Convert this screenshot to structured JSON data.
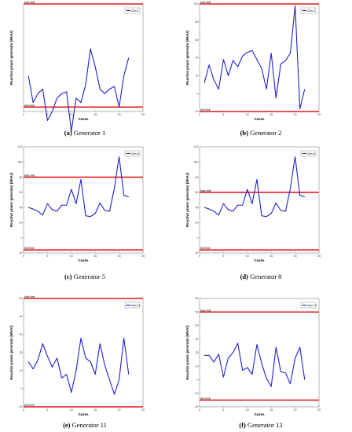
{
  "chart_data": [
    {
      "type": "line",
      "caption_letter": "(a)",
      "caption_text": "Generator 1",
      "xlabel": "Cases",
      "ylabel": "Reactive power generator [MVAr]",
      "xlim": [
        0,
        25
      ],
      "ylim": [
        -20,
        100
      ],
      "xticks": [
        0,
        5,
        10,
        15,
        20,
        25
      ],
      "yticks": [],
      "max_limit": {
        "label": "Max limit",
        "value": 100
      },
      "min_limit": {
        "label": "Min limit",
        "value": -15
      },
      "legend": {
        "placement": "top-right"
      },
      "limit_color": "#e41a1c",
      "series": [
        {
          "name": "Gen 1",
          "color": "#1f1fd6",
          "x": [
            1,
            2,
            3,
            4,
            5,
            6,
            7,
            8,
            9,
            10,
            11,
            12,
            13,
            14,
            15,
            16,
            17,
            18,
            19,
            20,
            21,
            22
          ],
          "values": [
            20,
            -10,
            0,
            5,
            -30,
            -20,
            -5,
            0,
            2,
            -42,
            -5,
            -10,
            10,
            50,
            30,
            5,
            0,
            5,
            8,
            -15,
            20,
            40
          ]
        }
      ]
    },
    {
      "type": "line",
      "caption_letter": "(b)",
      "caption_text": "Generator 2",
      "xlabel": "Cases",
      "ylabel": "Reactive power generator [MVAr]",
      "xlim": [
        0,
        25
      ],
      "ylim": [
        -20,
        100
      ],
      "xticks": [
        0,
        5,
        10,
        15,
        20,
        25
      ],
      "yticks": [
        -20,
        0,
        20,
        40,
        60,
        80,
        100
      ],
      "max_limit": {
        "label": "Max limit",
        "value": 100
      },
      "min_limit": {
        "label": "Min limit",
        "value": -20
      },
      "legend": {
        "placement": "top-right"
      },
      "limit_color": "#e41a1c",
      "series": [
        {
          "name": "Gen 2",
          "color": "#1f1fd6",
          "x": [
            1,
            2,
            3,
            4,
            5,
            6,
            7,
            8,
            9,
            10,
            11,
            12,
            13,
            14,
            15,
            16,
            17,
            18,
            19,
            20,
            21,
            22
          ],
          "values": [
            12,
            32,
            15,
            5,
            38,
            20,
            37,
            30,
            42,
            46,
            48,
            38,
            28,
            5,
            45,
            -5,
            33,
            37,
            45,
            98,
            -17,
            5
          ]
        }
      ]
    },
    {
      "type": "line",
      "caption_letter": "(c)",
      "caption_text": "Generator 5",
      "xlabel": "Cases",
      "ylabel": "Reactive power generator [MVAr]",
      "xlim": [
        0,
        25
      ],
      "ylim": [
        -20,
        120
      ],
      "xticks": [
        0,
        5,
        10,
        15,
        20,
        25
      ],
      "yticks": [
        -20,
        0,
        20,
        40,
        60,
        80,
        100,
        120
      ],
      "max_limit": {
        "label": "Max limit",
        "value": 80
      },
      "min_limit": {
        "label": "Min limit",
        "value": -16
      },
      "legend": {
        "placement": "top-right"
      },
      "limit_color": "#e41a1c",
      "series": [
        {
          "name": "Gen 5",
          "color": "#1f1fd6",
          "x": [
            1,
            2,
            3,
            4,
            5,
            6,
            7,
            8,
            9,
            10,
            11,
            12,
            13,
            14,
            15,
            16,
            17,
            18,
            19,
            20,
            21,
            22
          ],
          "values": [
            40,
            38,
            35,
            30,
            45,
            37,
            35,
            43,
            43,
            64,
            45,
            77,
            29,
            28,
            32,
            46,
            36,
            35,
            65,
            107,
            56,
            54
          ]
        }
      ]
    },
    {
      "type": "line",
      "caption_letter": "(d)",
      "caption_text": "Generator 8",
      "xlabel": "Cases",
      "ylabel": "Reactive power generator [MVAr]",
      "xlim": [
        0,
        25
      ],
      "ylim": [
        -20,
        120
      ],
      "xticks": [
        0,
        5,
        10,
        15,
        20,
        25
      ],
      "yticks": [
        -20,
        0,
        20,
        40,
        60,
        80,
        100,
        120
      ],
      "max_limit": {
        "label": "Max limit",
        "value": 60
      },
      "min_limit": {
        "label": "Min limit",
        "value": -16
      },
      "legend": {
        "placement": "top-right"
      },
      "limit_color": "#e41a1c",
      "series": [
        {
          "name": "Gen 8",
          "color": "#1f1fd6",
          "x": [
            1,
            2,
            3,
            4,
            5,
            6,
            7,
            8,
            9,
            10,
            11,
            12,
            13,
            14,
            15,
            16,
            17,
            18,
            19,
            20,
            21,
            22
          ],
          "values": [
            40,
            38,
            35,
            30,
            45,
            37,
            35,
            43,
            43,
            64,
            45,
            77,
            29,
            28,
            32,
            46,
            36,
            35,
            65,
            107,
            56,
            54
          ]
        }
      ]
    },
    {
      "type": "line",
      "caption_letter": "(e)",
      "caption_text": "Generator 11",
      "xlabel": "Cases",
      "ylabel": "Reactive power generator [MVAr]",
      "xlim": [
        0,
        25
      ],
      "ylim": [
        -10,
        50
      ],
      "xticks": [
        0,
        5,
        10,
        15,
        20,
        25
      ],
      "yticks": [
        -10,
        0,
        10,
        20,
        30,
        40,
        50
      ],
      "max_limit": {
        "label": "Max limit",
        "value": 50
      },
      "min_limit": {
        "label": "Min limit",
        "value": -10
      },
      "legend": {
        "placement": "top-right"
      },
      "limit_color": "#e41a1c",
      "series": [
        {
          "name": "Gen 11",
          "color": "#1f1fd6",
          "x": [
            1,
            2,
            3,
            4,
            5,
            6,
            7,
            8,
            9,
            10,
            11,
            12,
            13,
            14,
            15,
            16,
            17,
            18,
            19,
            20,
            21,
            22
          ],
          "values": [
            15,
            11,
            16,
            25,
            18,
            12,
            17,
            6,
            8,
            -2,
            10,
            28,
            17,
            15,
            8,
            25,
            13,
            5,
            -3,
            5,
            28,
            8
          ]
        }
      ]
    },
    {
      "type": "line",
      "caption_letter": "(f)",
      "caption_text": "Generator 13",
      "xlabel": "Cases",
      "ylabel": "Reactive power generator [MVAr]",
      "xlim": [
        0,
        25
      ],
      "ylim": [
        -20,
        60
      ],
      "xticks": [
        0,
        5,
        10,
        15,
        20,
        25
      ],
      "yticks": [
        -20,
        -10,
        0,
        10,
        20,
        30,
        40,
        50,
        60
      ],
      "max_limit": {
        "label": "Max limit",
        "value": 50
      },
      "min_limit": {
        "label": "Min limit",
        "value": -15
      },
      "legend": {
        "placement": "top-right"
      },
      "limit_color": "#e41a1c",
      "series": [
        {
          "name": "Gen 13",
          "color": "#1f1fd6",
          "x": [
            1,
            2,
            3,
            4,
            5,
            6,
            7,
            8,
            9,
            10,
            11,
            12,
            13,
            14,
            15,
            16,
            17,
            18,
            19,
            20,
            21,
            22
          ],
          "values": [
            18,
            18,
            13,
            19,
            2,
            16,
            20,
            27,
            7,
            9,
            4,
            26,
            12,
            1,
            -5,
            24,
            6,
            5,
            -3,
            16,
            24,
            0
          ]
        }
      ]
    }
  ]
}
